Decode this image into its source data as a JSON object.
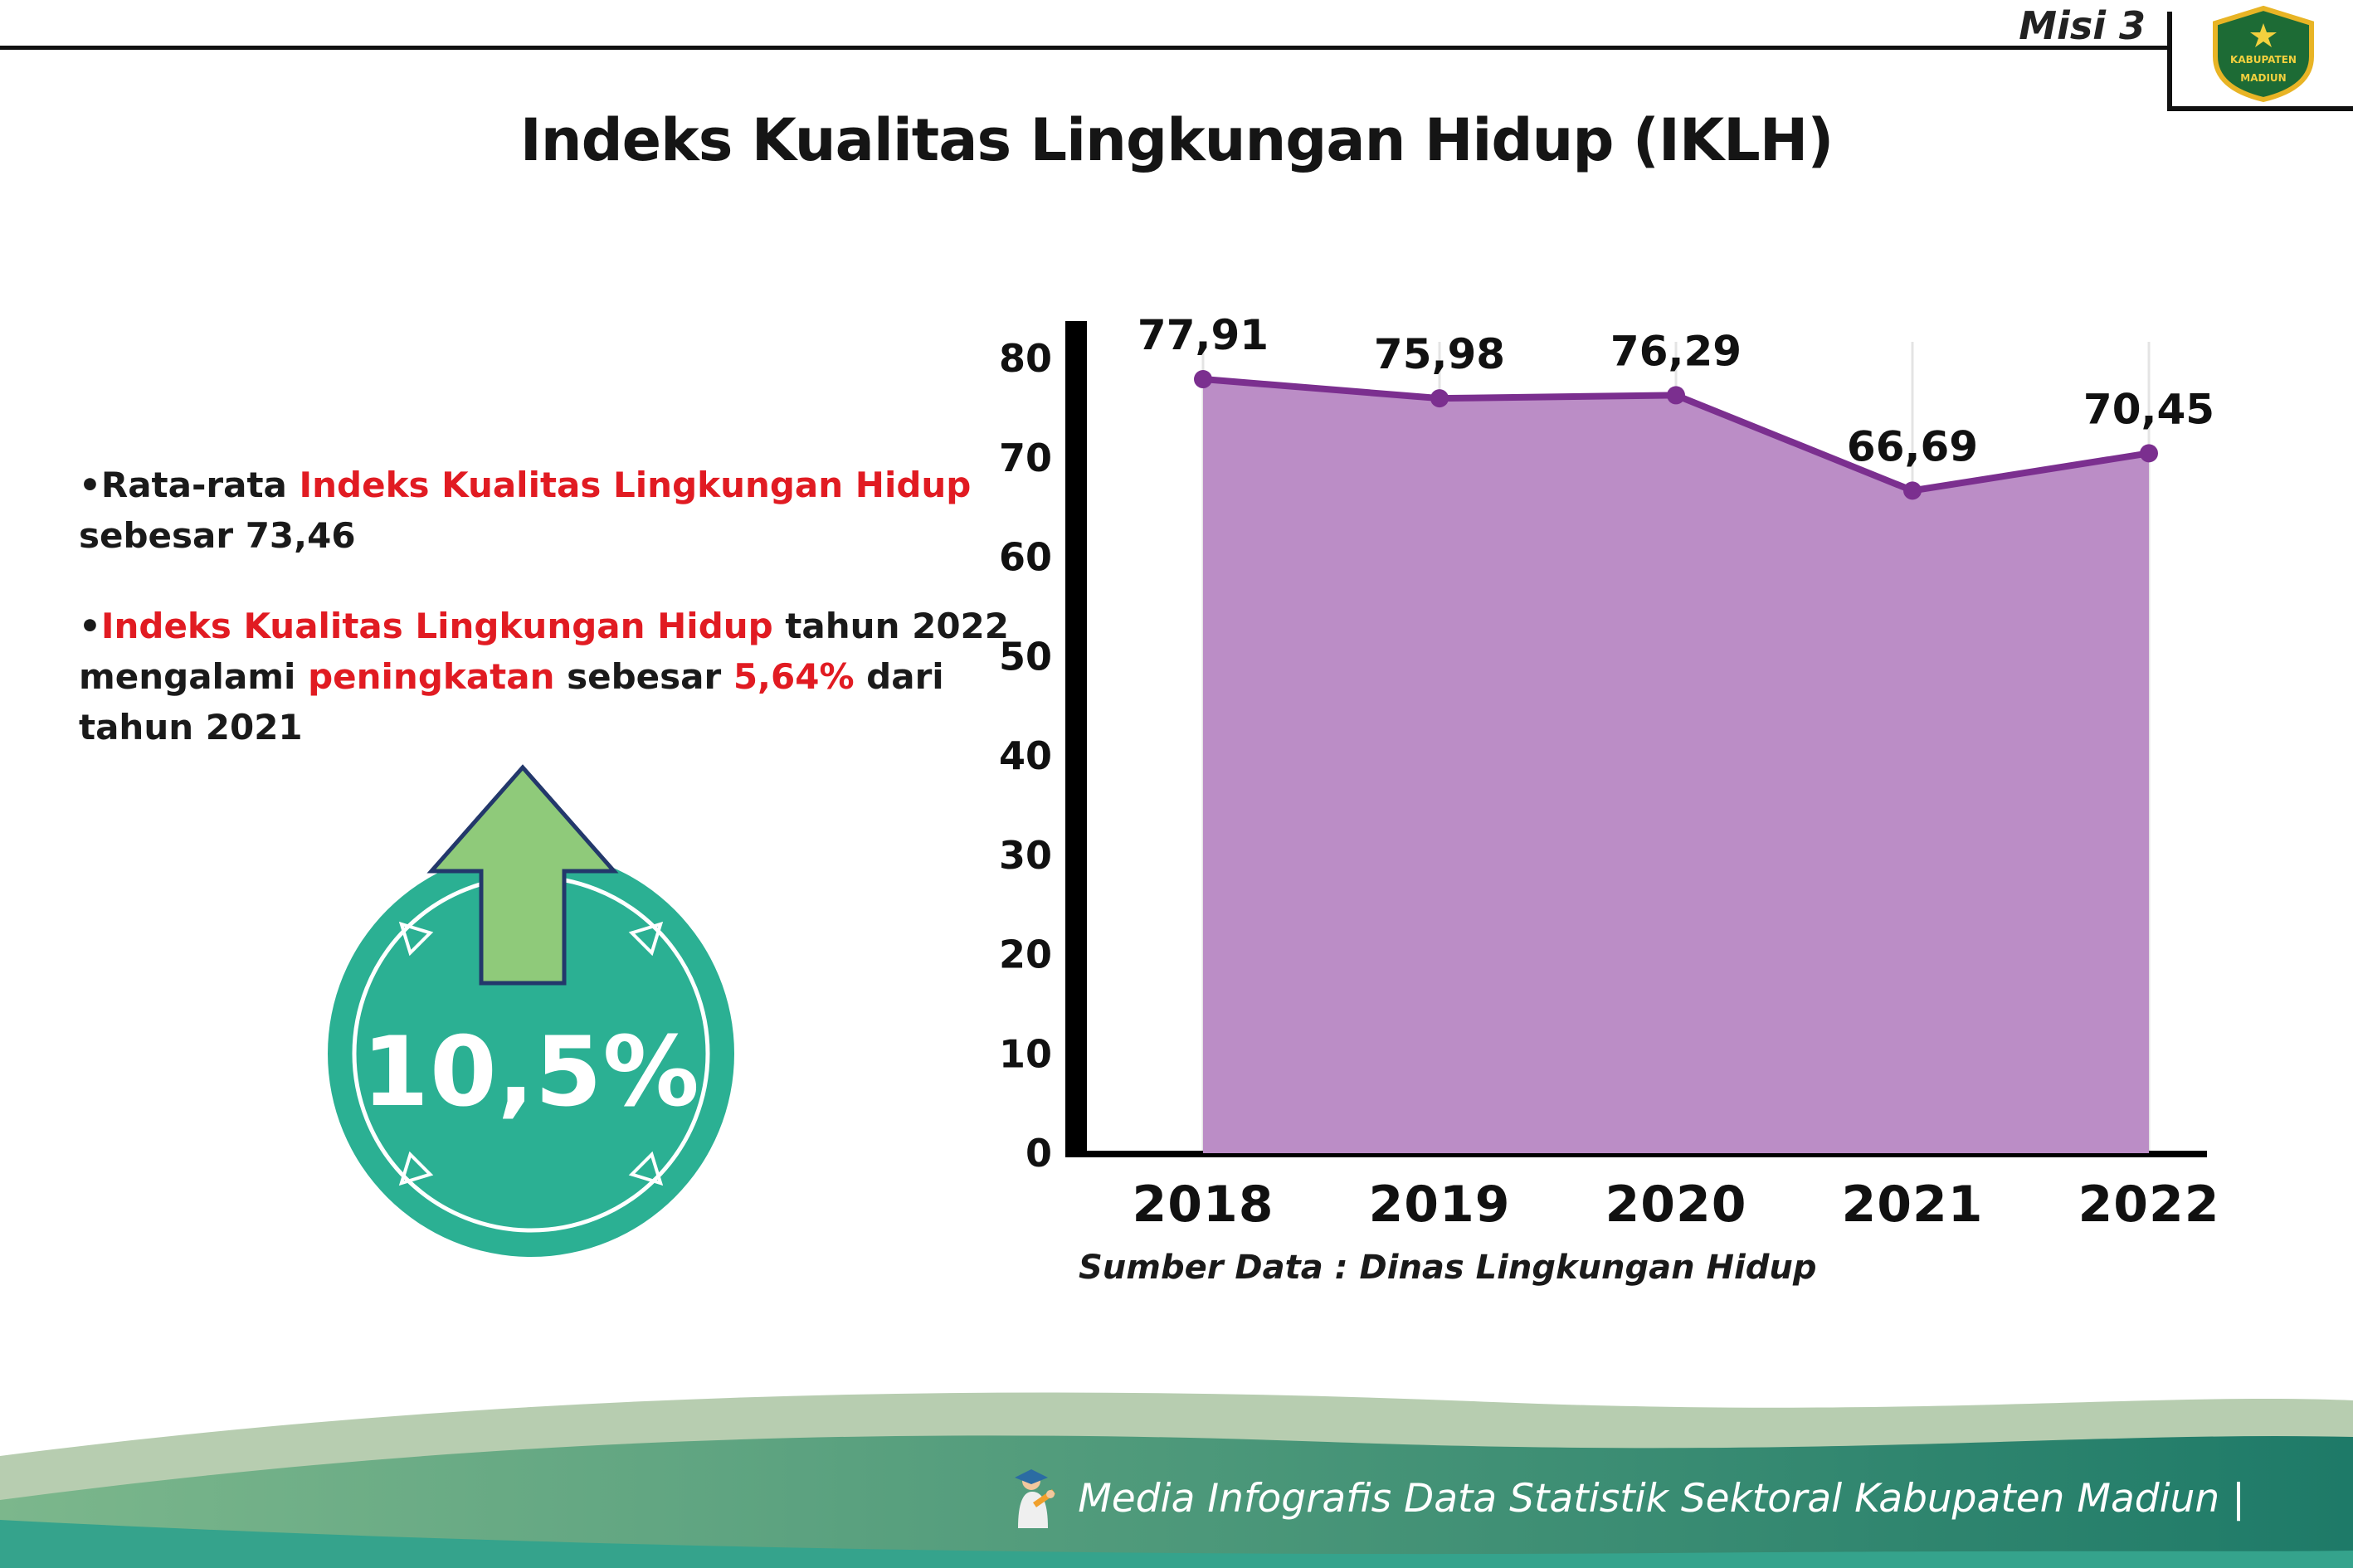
{
  "colors": {
    "accent_red": "#e11b22",
    "badge_teal": "#2bb093",
    "arrow_green": "#8fca7a",
    "arrow_outline": "#23386b",
    "chart_line": "#7b2f8f",
    "chart_fill": "#bb8dc6",
    "footer_sage": "#b7cdb0",
    "footer_grad_light": "#7cb78c",
    "footer_grad_dark": "#1e7a68",
    "footer_teal": "#35a38c",
    "logo_green": "#1d6b35",
    "logo_yellow": "#e8b425"
  },
  "header": {
    "misi_label": "Misi 3",
    "title": "Indeks Kualitas Lingkungan Hidup (IKLH)",
    "logo": {
      "name": "kabupaten-madiun-crest",
      "text_top": "KABUPATEN",
      "text_bottom": "MADIUN"
    }
  },
  "bullets": {
    "marker": "•",
    "item1": {
      "p1": "Rata-rata ",
      "p2": "Indeks Kualitas Lingkungan Hidup",
      "p3": " sebesar 73,46"
    },
    "item2": {
      "p1": "Indeks Kualitas Lingkungan Hidup",
      "p2": " tahun 2022 mengalami ",
      "p3": "peningkatan",
      "p4": " sebesar ",
      "p5": "5,64%",
      "p6": " dari tahun 2021"
    }
  },
  "badge": {
    "value": "10,5%"
  },
  "chart_data": {
    "type": "area",
    "title": "",
    "categories": [
      "2018",
      "2019",
      "2020",
      "2021",
      "2022"
    ],
    "values": [
      77.91,
      75.98,
      76.29,
      66.69,
      70.45
    ],
    "value_labels": [
      "77,91",
      "75,98",
      "76,29",
      "66,69",
      "70,45"
    ],
    "xlabel": "",
    "ylabel": "",
    "ylim": [
      0,
      80
    ],
    "ytick_step": 10,
    "grid": true,
    "legend": "none",
    "source_note": "Sumber Data : Dinas Lingkungan Hidup"
  },
  "footer": {
    "credit": "Media Infografis Data Statistik Sektoral Kabupaten Madiun |"
  }
}
